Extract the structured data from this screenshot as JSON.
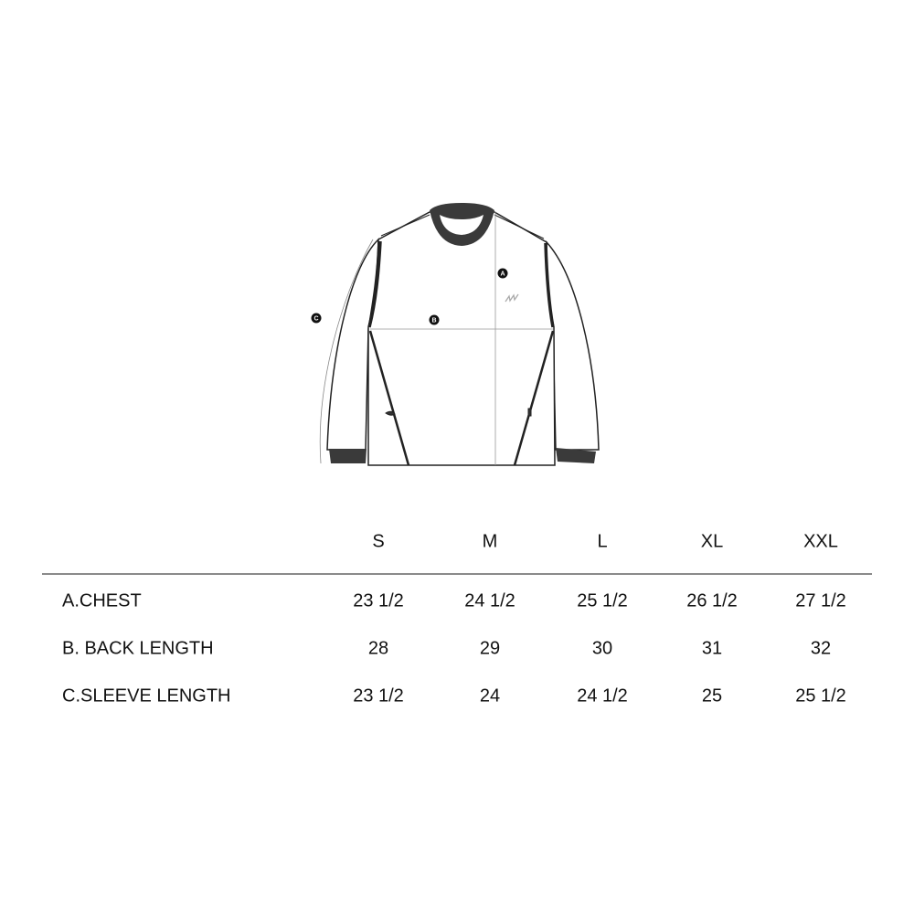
{
  "diagram": {
    "markers": {
      "a": "A",
      "b": "B",
      "c": "C"
    },
    "trim_color": "#3a3a3a"
  },
  "table": {
    "sizes": [
      "S",
      "M",
      "L",
      "XL",
      "XXL"
    ],
    "rows": [
      {
        "label": "A.CHEST",
        "values": [
          "23 1/2",
          "24 1/2",
          "25 1/2",
          "26 1/2",
          "27 1/2"
        ]
      },
      {
        "label": "B. BACK LENGTH",
        "values": [
          "28",
          "29",
          "30",
          "31",
          "32"
        ]
      },
      {
        "label": "C.SLEEVE LENGTH",
        "values": [
          "23 1/2",
          "24",
          "24 1/2",
          "25",
          "25 1/2"
        ]
      }
    ]
  }
}
